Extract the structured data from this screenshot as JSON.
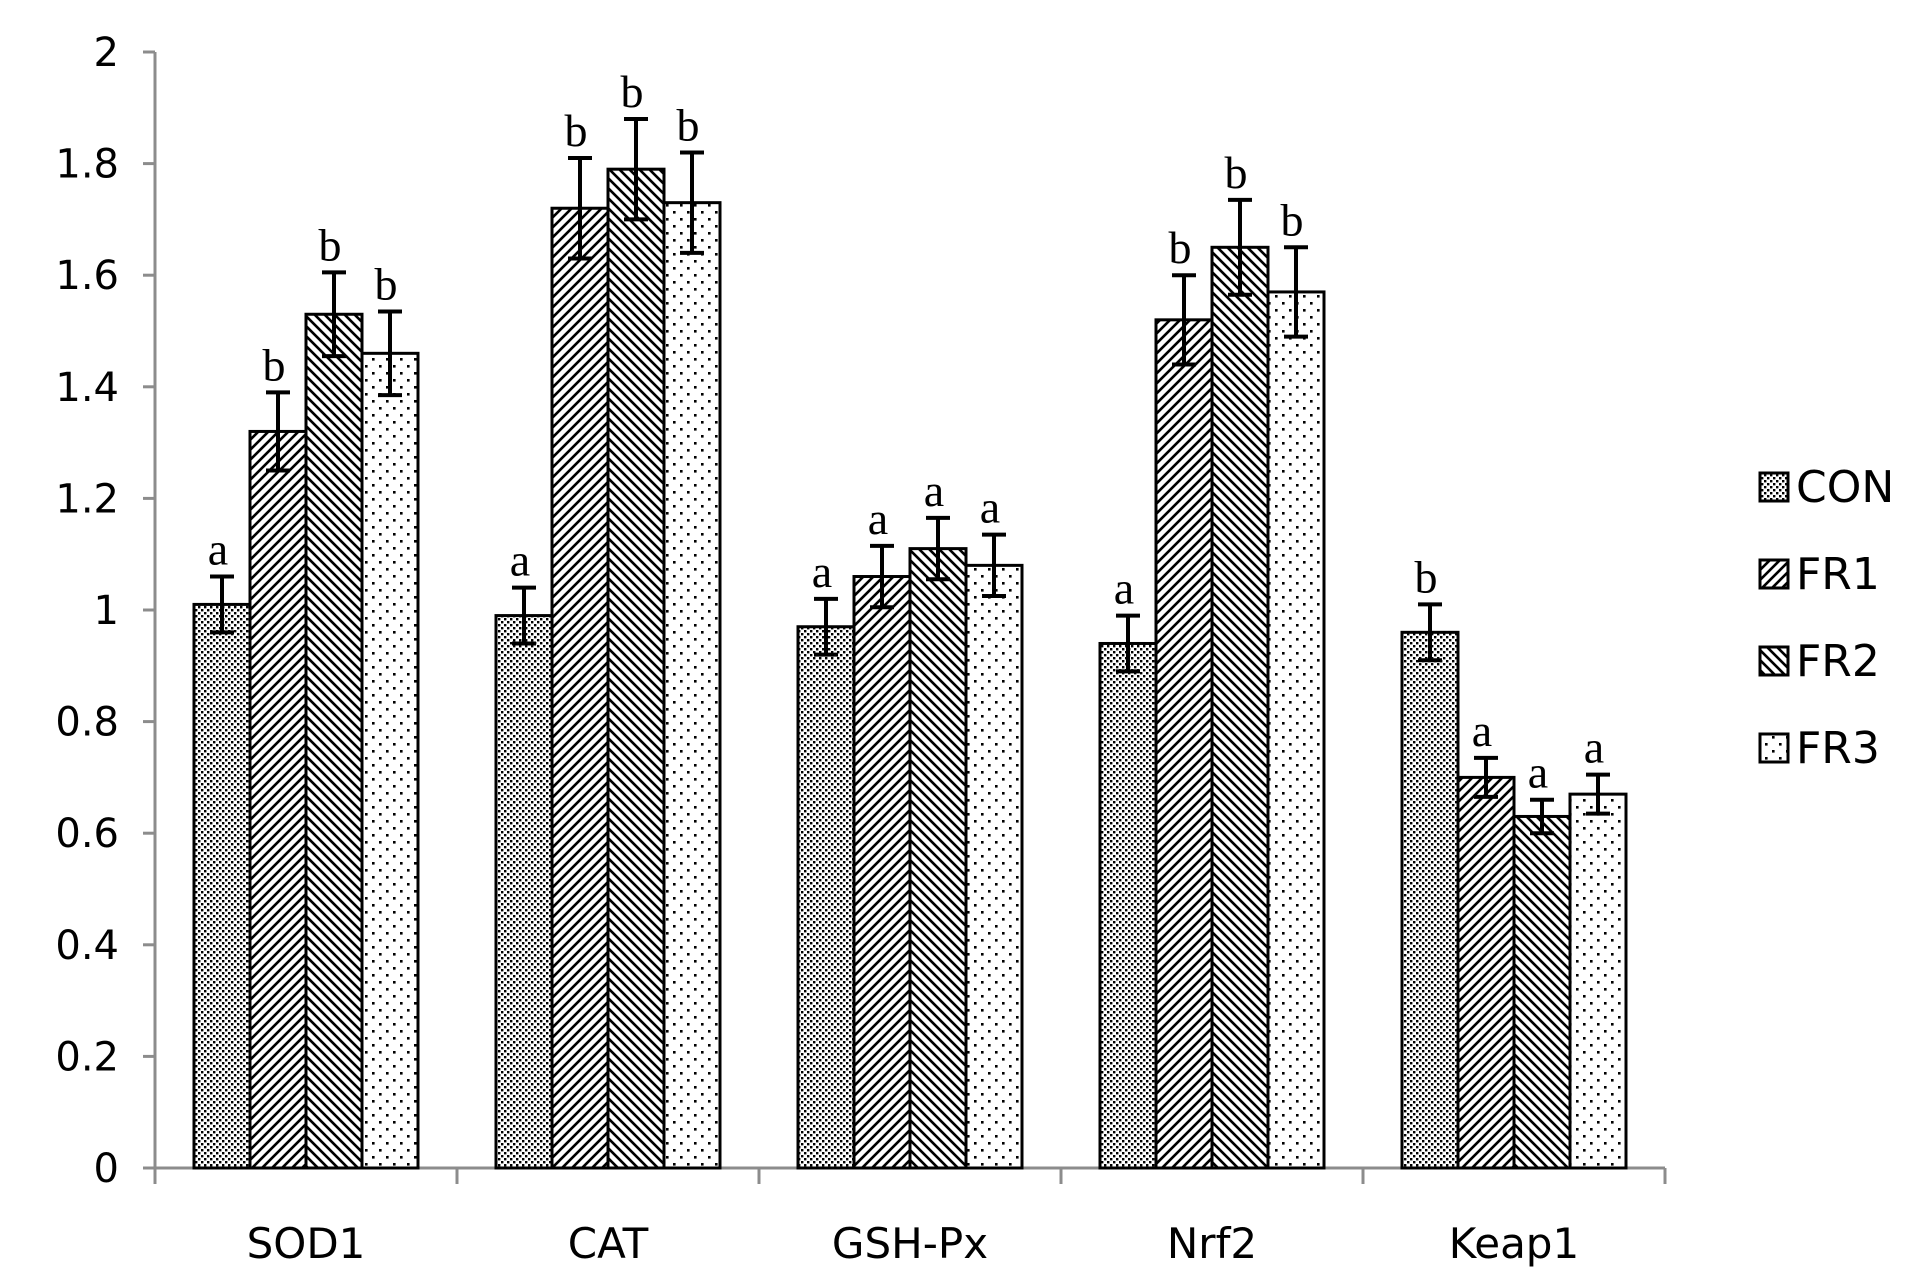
{
  "chart_data": {
    "type": "bar",
    "title": "",
    "xlabel": "",
    "ylabel": "",
    "ylim": [
      0,
      2
    ],
    "yticks": [
      0,
      0.2,
      0.4,
      0.6,
      0.8,
      1,
      1.2,
      1.4,
      1.6,
      1.8,
      2
    ],
    "ytick_labels": [
      "0",
      "0.2",
      "0.4",
      "0.6",
      "0.8",
      "1",
      "1.2",
      "1.4",
      "1.6",
      "1.8",
      "2"
    ],
    "grid": false,
    "legend_position": "right",
    "categories": [
      "SOD1",
      "CAT",
      "GSH-Px",
      "Nrf2",
      "Keap1"
    ],
    "series": [
      {
        "name": "CON",
        "pattern": "dense-dots",
        "values": [
          1.01,
          0.99,
          0.97,
          0.94,
          0.96
        ],
        "errors": [
          0.05,
          0.05,
          0.05,
          0.05,
          0.05
        ],
        "letters": [
          "a",
          "a",
          "a",
          "a",
          "b"
        ]
      },
      {
        "name": "FR1",
        "pattern": "diagonal-up",
        "values": [
          1.32,
          1.72,
          1.06,
          1.52,
          0.7
        ],
        "errors": [
          0.07,
          0.09,
          0.055,
          0.08,
          0.035
        ],
        "letters": [
          "b",
          "b",
          "a",
          "b",
          "a"
        ]
      },
      {
        "name": "FR2",
        "pattern": "diagonal-down",
        "values": [
          1.53,
          1.79,
          1.11,
          1.65,
          0.63
        ],
        "errors": [
          0.075,
          0.09,
          0.055,
          0.085,
          0.03
        ],
        "letters": [
          "b",
          "b",
          "a",
          "b",
          "a"
        ]
      },
      {
        "name": "FR3",
        "pattern": "sparse-dots",
        "values": [
          1.46,
          1.73,
          1.08,
          1.57,
          0.67
        ],
        "errors": [
          0.075,
          0.09,
          0.055,
          0.08,
          0.035
        ],
        "letters": [
          "b",
          "b",
          "a",
          "b",
          "a"
        ]
      }
    ]
  }
}
